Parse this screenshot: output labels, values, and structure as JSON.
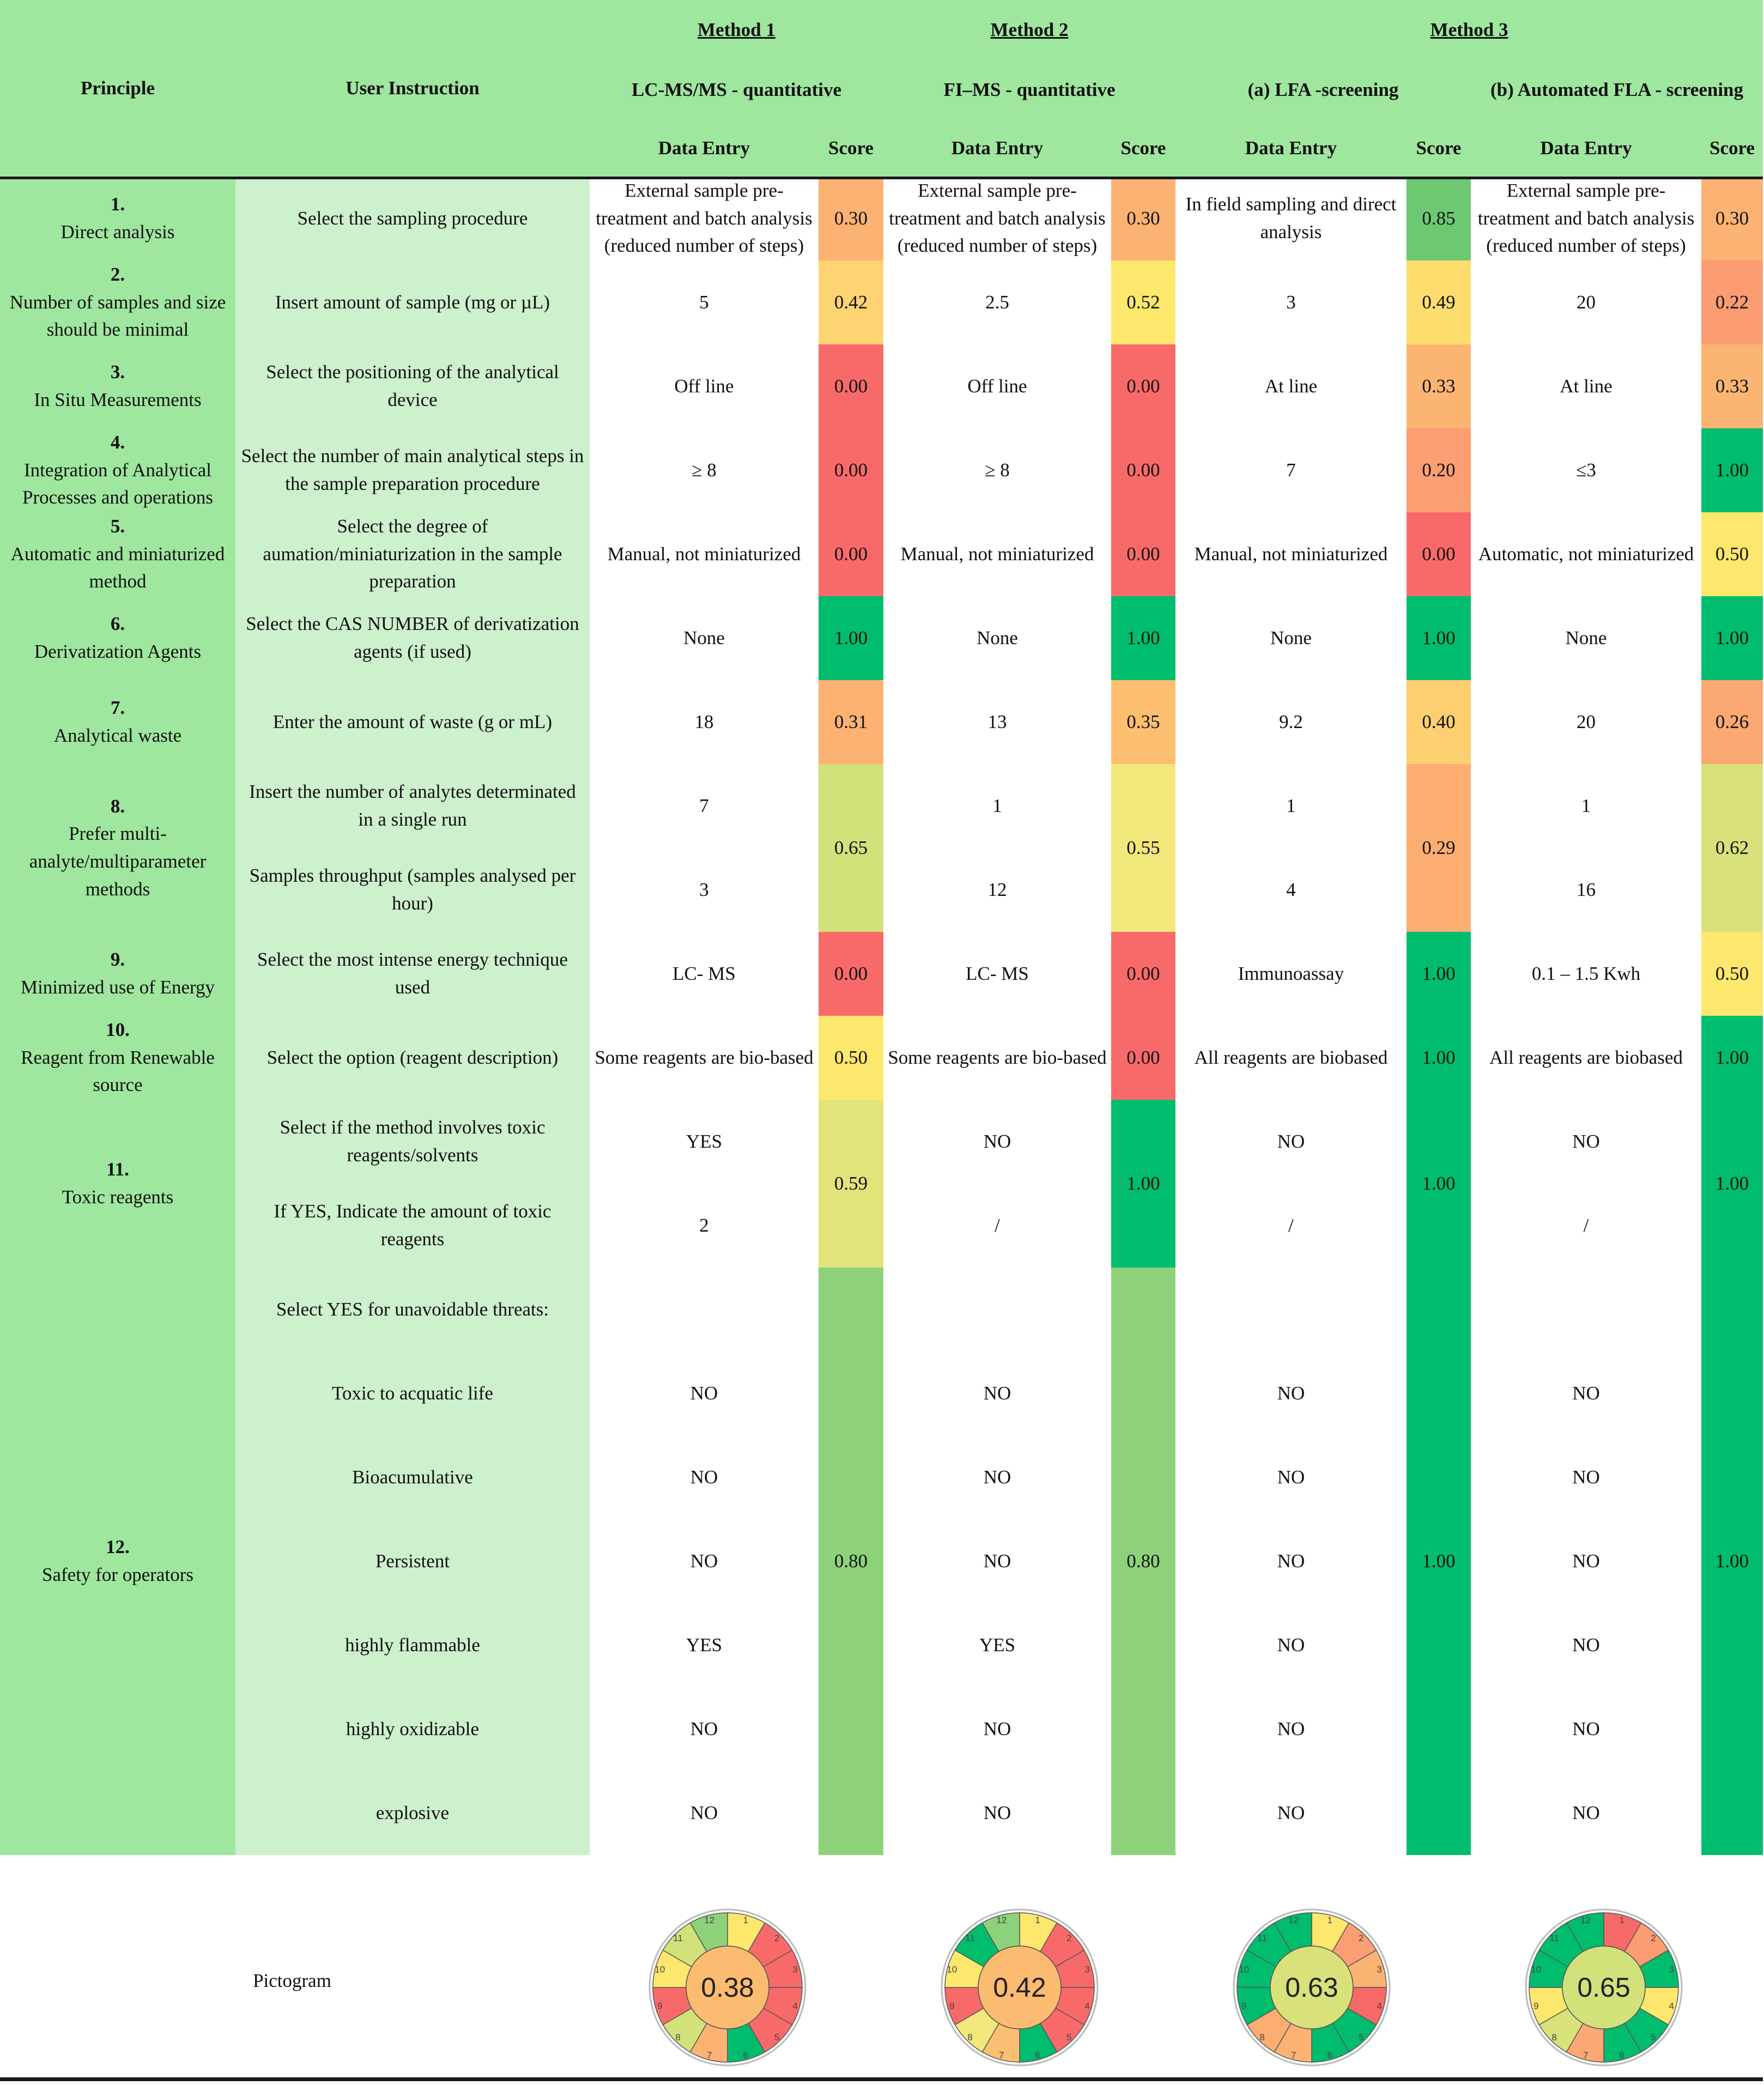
{
  "header": {
    "principle": "Principle",
    "user_instruction": "User Instruction",
    "methods": [
      {
        "name": "Method 1",
        "sub": "LC-MS/MS - quantitative"
      },
      {
        "name": "Method 2",
        "sub": "FI–MS - quantitative"
      },
      {
        "name": "Method 3",
        "sub_a": "(a) LFA -screening",
        "sub_b": "(b) Automated FLA - screening"
      }
    ],
    "data_entry": "Data Entry",
    "score": "Score"
  },
  "colors": {
    "header_green": "#9fe69f",
    "principle_green": "#9fe69f",
    "instruction_green": "#cdf0cd",
    "score_0.00": "#f86a6a",
    "score_0.20": "#fb9e74",
    "score_0.30": "#fbb273",
    "score_0.50": "#fde76c",
    "score_0.59": "#e2e47a",
    "score_0.65": "#d2e17a",
    "score_0.80": "#8dd27a",
    "score_0.85": "#6dc872",
    "score_1.00": "#00bd6e"
  },
  "rows": [
    {
      "num": "1.",
      "principle": "Direct analysis",
      "lines": [
        {
          "instruction": "Select the sampling procedure",
          "entries": [
            "External sample pre-treatment and batch analysis (reduced number of steps)",
            "External sample pre-treatment and batch analysis (reduced number of steps)",
            "In field sampling and direct analysis",
            "External sample pre-treatment and batch analysis (reduced number of steps)"
          ]
        }
      ],
      "scores": [
        "0.30",
        "0.30",
        "0.85",
        "0.30"
      ],
      "score_colors": [
        "#fbb273",
        "#fbb273",
        "#6dc872",
        "#fbb273"
      ]
    },
    {
      "num": "2.",
      "principle": "Number of samples and size should be minimal",
      "lines": [
        {
          "instruction": "Insert amount of sample (mg or µL)",
          "entries": [
            "5",
            "2.5",
            "3",
            "20"
          ]
        }
      ],
      "scores": [
        "0.42",
        "0.52",
        "0.49",
        "0.22"
      ],
      "score_colors": [
        "#fdd373",
        "#fde76c",
        "#fddd6d",
        "#fb9c72"
      ]
    },
    {
      "num": "3.",
      "principle": "In Situ Measurements",
      "lines": [
        {
          "instruction": "Select the positioning of the analytical device",
          "entries": [
            "Off line",
            "Off line",
            "At line",
            "At line"
          ]
        }
      ],
      "scores": [
        "0.00",
        "0.00",
        "0.33",
        "0.33"
      ],
      "score_colors": [
        "#f86a6a",
        "#f86a6a",
        "#fbb472",
        "#fbb472"
      ]
    },
    {
      "num": "4.",
      "principle": "Integration of Analytical Processes and operations",
      "lines": [
        {
          "instruction": "Select the number of main analytical steps in the sample preparation procedure",
          "entries": [
            "≥ 8",
            "≥ 8",
            "7",
            "≤3"
          ]
        }
      ],
      "scores": [
        "0.00",
        "0.00",
        "0.20",
        "1.00"
      ],
      "score_colors": [
        "#f86a6a",
        "#f86a6a",
        "#fb9e74",
        "#00bd6e"
      ]
    },
    {
      "num": "5.",
      "principle": "Automatic and miniaturized method",
      "lines": [
        {
          "instruction": "Select the degree of aumation/miniaturization in the sample preparation",
          "entries": [
            "Manual, not miniaturized",
            "Manual, not miniaturized",
            "Manual, not miniaturized",
            "Automatic, not miniaturized"
          ]
        }
      ],
      "scores": [
        "0.00",
        "0.00",
        "0.00",
        "0.50"
      ],
      "score_colors": [
        "#f86a6a",
        "#f86a6a",
        "#f86a6a",
        "#fde76c"
      ]
    },
    {
      "num": "6.",
      "principle": "Derivatization Agents",
      "lines": [
        {
          "instruction": "Select the CAS NUMBER of derivatization agents (if used)",
          "entries": [
            "None",
            "None",
            "None",
            "None"
          ]
        }
      ],
      "scores": [
        "1.00",
        "1.00",
        "1.00",
        "1.00"
      ],
      "score_colors": [
        "#00bd6e",
        "#00bd6e",
        "#00bd6e",
        "#00bd6e"
      ]
    },
    {
      "num": "7.",
      "principle": "Analytical waste",
      "lines": [
        {
          "instruction": "Enter the amount of waste (g or mL)",
          "entries": [
            "18",
            "13",
            "9.2",
            "20"
          ]
        }
      ],
      "scores": [
        "0.31",
        "0.35",
        "0.40",
        "0.26"
      ],
      "score_colors": [
        "#fbb273",
        "#fcbf71",
        "#fdcf70",
        "#fba872"
      ]
    },
    {
      "num": "8.",
      "principle": "Prefer multi-analyte/multiparameter methods",
      "lines": [
        {
          "instruction": "Insert the number of  analytes determinated in a single run",
          "entries": [
            "7",
            "1",
            "1",
            "1"
          ]
        },
        {
          "instruction": "Samples throughput (samples analysed per hour)",
          "entries": [
            "3",
            "12",
            "4",
            "16"
          ]
        }
      ],
      "scores": [
        "0.65",
        "0.55",
        "0.29",
        "0.62"
      ],
      "score_colors": [
        "#d2e17a",
        "#f2e77a",
        "#fbad72",
        "#d8e17a"
      ]
    },
    {
      "num": "9.",
      "principle": "Minimized use of Energy",
      "lines": [
        {
          "instruction": "Select the most intense energy technique used",
          "entries": [
            "LC- MS",
            "LC- MS",
            "Immunoassay",
            "0.1 – 1.5 Kwh"
          ]
        }
      ],
      "scores": [
        "0.00",
        "0.00",
        "1.00",
        "0.50"
      ],
      "score_colors": [
        "#f86a6a",
        "#f86a6a",
        "#00bd6e",
        "#fde76c"
      ]
    },
    {
      "num": "10.",
      "principle": "Reagent from Renewable source",
      "lines": [
        {
          "instruction": "Select the option (reagent description)",
          "entries": [
            "Some reagents are bio-based",
            "Some reagents are bio-based",
            "All reagents are biobased",
            "All reagents are biobased"
          ]
        }
      ],
      "scores": [
        "0.50",
        "0.00",
        "1.00",
        "1.00"
      ],
      "score_colors": [
        "#fde76c",
        "#f86a6a",
        "#00bd6e",
        "#00bd6e"
      ]
    },
    {
      "num": "11.",
      "principle": "Toxic reagents",
      "lines": [
        {
          "instruction": "Select if the method involves toxic reagents/solvents",
          "entries": [
            "YES",
            "NO",
            "NO",
            "NO"
          ]
        },
        {
          "instruction": "If YES, Indicate the amount of toxic reagents",
          "entries": [
            "2",
            "/",
            "/",
            "/"
          ]
        }
      ],
      "scores": [
        "0.59",
        "1.00",
        "1.00",
        "1.00"
      ],
      "score_colors": [
        "#e2e47a",
        "#00bd6e",
        "#00bd6e",
        "#00bd6e"
      ]
    },
    {
      "num": "12.",
      "principle": "Safety for operators",
      "lines": [
        {
          "instruction": "Select YES for unavoidable threats:",
          "entries": [
            "",
            "",
            "",
            ""
          ]
        },
        {
          "instruction": "Toxic to acquatic life",
          "entries": [
            "NO",
            "NO",
            "NO",
            "NO"
          ]
        },
        {
          "instruction": "Bioacumulative",
          "entries": [
            "NO",
            "NO",
            "NO",
            "NO"
          ]
        },
        {
          "instruction": "Persistent",
          "entries": [
            "NO",
            "NO",
            "NO",
            "NO"
          ]
        },
        {
          "instruction": "highly flammable",
          "entries": [
            "YES",
            "YES",
            "NO",
            "NO"
          ]
        },
        {
          "instruction": "highly oxidizable",
          "entries": [
            "NO",
            "NO",
            "NO",
            "NO"
          ]
        },
        {
          "instruction": "explosive",
          "entries": [
            "NO",
            "NO",
            "NO",
            "NO"
          ]
        }
      ],
      "scores": [
        "0.80",
        "0.80",
        "1.00",
        "1.00"
      ],
      "score_colors": [
        "#8dd27a",
        "#8dd27a",
        "#00bd6e",
        "#00bd6e"
      ]
    }
  ],
  "pictogram": {
    "label": "Pictogram",
    "charts": [
      {
        "total": "0.38",
        "center_color": "#fbbb71",
        "segments": [
          "#fde76c",
          "#f86a6a",
          "#f86a6a",
          "#f86a6a",
          "#f86a6a",
          "#00bd6e",
          "#fbb273",
          "#d2e17a",
          "#f86a6a",
          "#fde76c",
          "#d2e17a",
          "#8dd27a"
        ]
      },
      {
        "total": "0.42",
        "center_color": "#fbbb71",
        "segments": [
          "#fde76c",
          "#f86a6a",
          "#f86a6a",
          "#f86a6a",
          "#f86a6a",
          "#00bd6e",
          "#fbbf71",
          "#f2e77a",
          "#f86a6a",
          "#fde76c",
          "#00bd6e",
          "#8dd27a"
        ]
      },
      {
        "total": "0.63",
        "center_color": "#d8e17a",
        "segments": [
          "#fde76c",
          "#fb9e74",
          "#fbb472",
          "#f86a6a",
          "#00bd6e",
          "#00bd6e",
          "#fbb273",
          "#fbad72",
          "#00bd6e",
          "#00bd6e",
          "#00bd6e",
          "#00bd6e"
        ]
      },
      {
        "total": "0.65",
        "center_color": "#d2e17a",
        "segments": [
          "#f86a6a",
          "#fb9c72",
          "#00bd6e",
          "#fde76c",
          "#00bd6e",
          "#00bd6e",
          "#fba872",
          "#d8e17a",
          "#fde76c",
          "#00bd6e",
          "#00bd6e",
          "#00bd6e"
        ]
      }
    ],
    "segment_numbers": [
      "1",
      "2",
      "3",
      "4",
      "5",
      "6",
      "7",
      "8",
      "9",
      "10",
      "11",
      "12"
    ]
  }
}
